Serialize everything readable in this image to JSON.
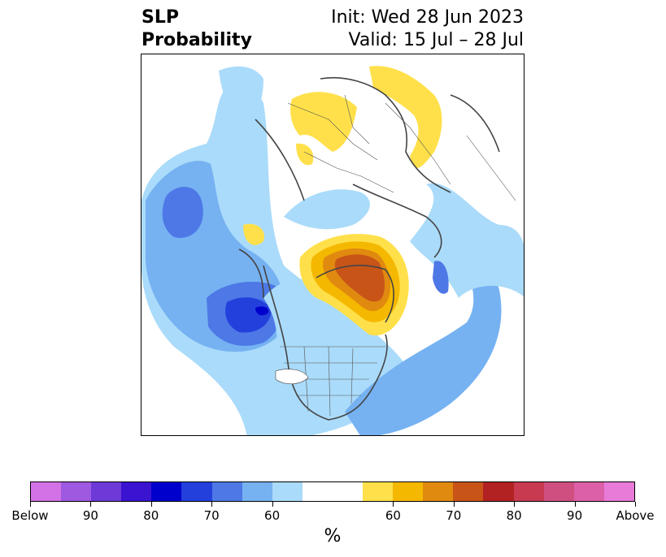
{
  "title": {
    "variable": "SLP",
    "product": "Probability",
    "init": "Init: Wed 28 Jun 2023",
    "valid": "Valid: 15 Jul – 28 Jul"
  },
  "map": {
    "projection": "north-polar-stereographic",
    "features": [
      "coastlines",
      "country-borders",
      "us-state-borders"
    ],
    "anomaly_regions": [
      {
        "region": "northern Europe / Scandinavia",
        "category": "above",
        "level": "55-60"
      },
      {
        "region": "western Russia / Ural",
        "category": "above",
        "level": "55-60"
      },
      {
        "region": "Greenland",
        "category": "above",
        "level": "up to 75-80"
      },
      {
        "region": "north Pacific",
        "category": "below",
        "level": "70-75"
      },
      {
        "region": "Gulf of Alaska / western Canada",
        "category": "below",
        "level": "80-85"
      },
      {
        "region": "eastern Canada Arctic (Baffin Bay west)",
        "category": "below",
        "level": "65-70"
      },
      {
        "region": "central Atlantic / subtropics",
        "category": "below",
        "level": "60-65"
      }
    ]
  },
  "colorbar": {
    "colors": [
      "#d272e6",
      "#9f58e0",
      "#6d3ad8",
      "#3a14d0",
      "#0000cc",
      "#2440dc",
      "#4d78e6",
      "#76b2f2",
      "#aadbfa",
      "#ffffff",
      "#ffffff",
      "#ffe04a",
      "#f5b800",
      "#e08a10",
      "#c85418",
      "#b22222",
      "#c73a50",
      "#cf5080",
      "#dc60a8",
      "#e87ad8"
    ],
    "tick_labels": [
      "Below",
      "90",
      "80",
      "70",
      "60",
      "60",
      "70",
      "80",
      "90",
      "Above"
    ],
    "unit": "%"
  }
}
